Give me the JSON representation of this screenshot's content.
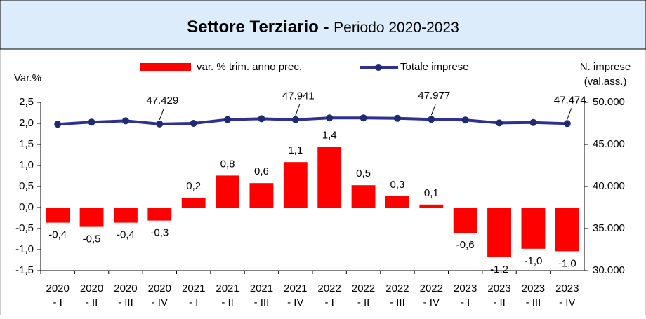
{
  "chart_data": {
    "type": "bar-line",
    "title": "Settore Terziario -",
    "subtitle": "Periodo 2020-2023",
    "y_label": "Var.%",
    "y2_label": [
      "N. imprese",
      "(val.ass.)"
    ],
    "categories": [
      "2020 - I",
      "2020 - II",
      "2020 - III",
      "2020 - IV",
      "2021 - I",
      "2021 - II",
      "2021 - III",
      "2021 - IV",
      "2022 - I",
      "2022 - II",
      "2022 - III",
      "2022 - IV",
      "2023 - I",
      "2023 - II",
      "2023 - III",
      "2023 - IV"
    ],
    "series": [
      {
        "name": "var. % trim. anno prec.",
        "color": "#ff0000",
        "type": "bar",
        "values": [
          -0.36,
          -0.46,
          -0.36,
          -0.31,
          0.23,
          0.76,
          0.58,
          1.08,
          1.44,
          0.53,
          0.27,
          0.07,
          -0.6,
          -1.18,
          -0.98,
          -1.04
        ],
        "value_labels": [
          "-0,4",
          "-0,5",
          "-0,4",
          "-0,3",
          "0,2",
          "0,8",
          "0,6",
          "1,1",
          "1,4",
          "0,5",
          "0,3",
          "0,1",
          "-0,6",
          "-1,2",
          "-1,0",
          "-1,0"
        ]
      },
      {
        "name": "Totale imprese",
        "color": "#2e3192",
        "type": "line",
        "axis": "y2",
        "values": [
          47400,
          47650,
          47800,
          47429,
          47500,
          47950,
          48050,
          47941,
          48150,
          48150,
          48100,
          47977,
          47900,
          47550,
          47600,
          47474
        ],
        "value_labels": [
          null,
          null,
          null,
          "47.429",
          null,
          null,
          null,
          "47.941",
          null,
          null,
          null,
          "47.977",
          null,
          null,
          null,
          "47.474"
        ]
      }
    ],
    "ylim": [
      -1.5,
      2.5
    ],
    "yticks": [
      {
        "value": -1.5,
        "label": "-1,5"
      },
      {
        "value": -1,
        "label": "-1,0"
      },
      {
        "value": -0.5,
        "label": "-0,5"
      },
      {
        "value": 0,
        "label": "0,0"
      },
      {
        "value": 0.5,
        "label": "0,5"
      },
      {
        "value": 1,
        "label": "1,0"
      },
      {
        "value": 1.5,
        "label": "1,5"
      },
      {
        "value": 2,
        "label": "2,0"
      },
      {
        "value": 2.5,
        "label": "2,5"
      }
    ],
    "y2lim": [
      30000,
      50000
    ],
    "y2ticks": [
      {
        "value": 30000,
        "label": "30.000"
      },
      {
        "value": 35000,
        "label": "35.000"
      },
      {
        "value": 40000,
        "label": "40.000"
      },
      {
        "value": 45000,
        "label": "45.000"
      },
      {
        "value": 50000,
        "label": "50.000"
      }
    ],
    "grid": false
  }
}
